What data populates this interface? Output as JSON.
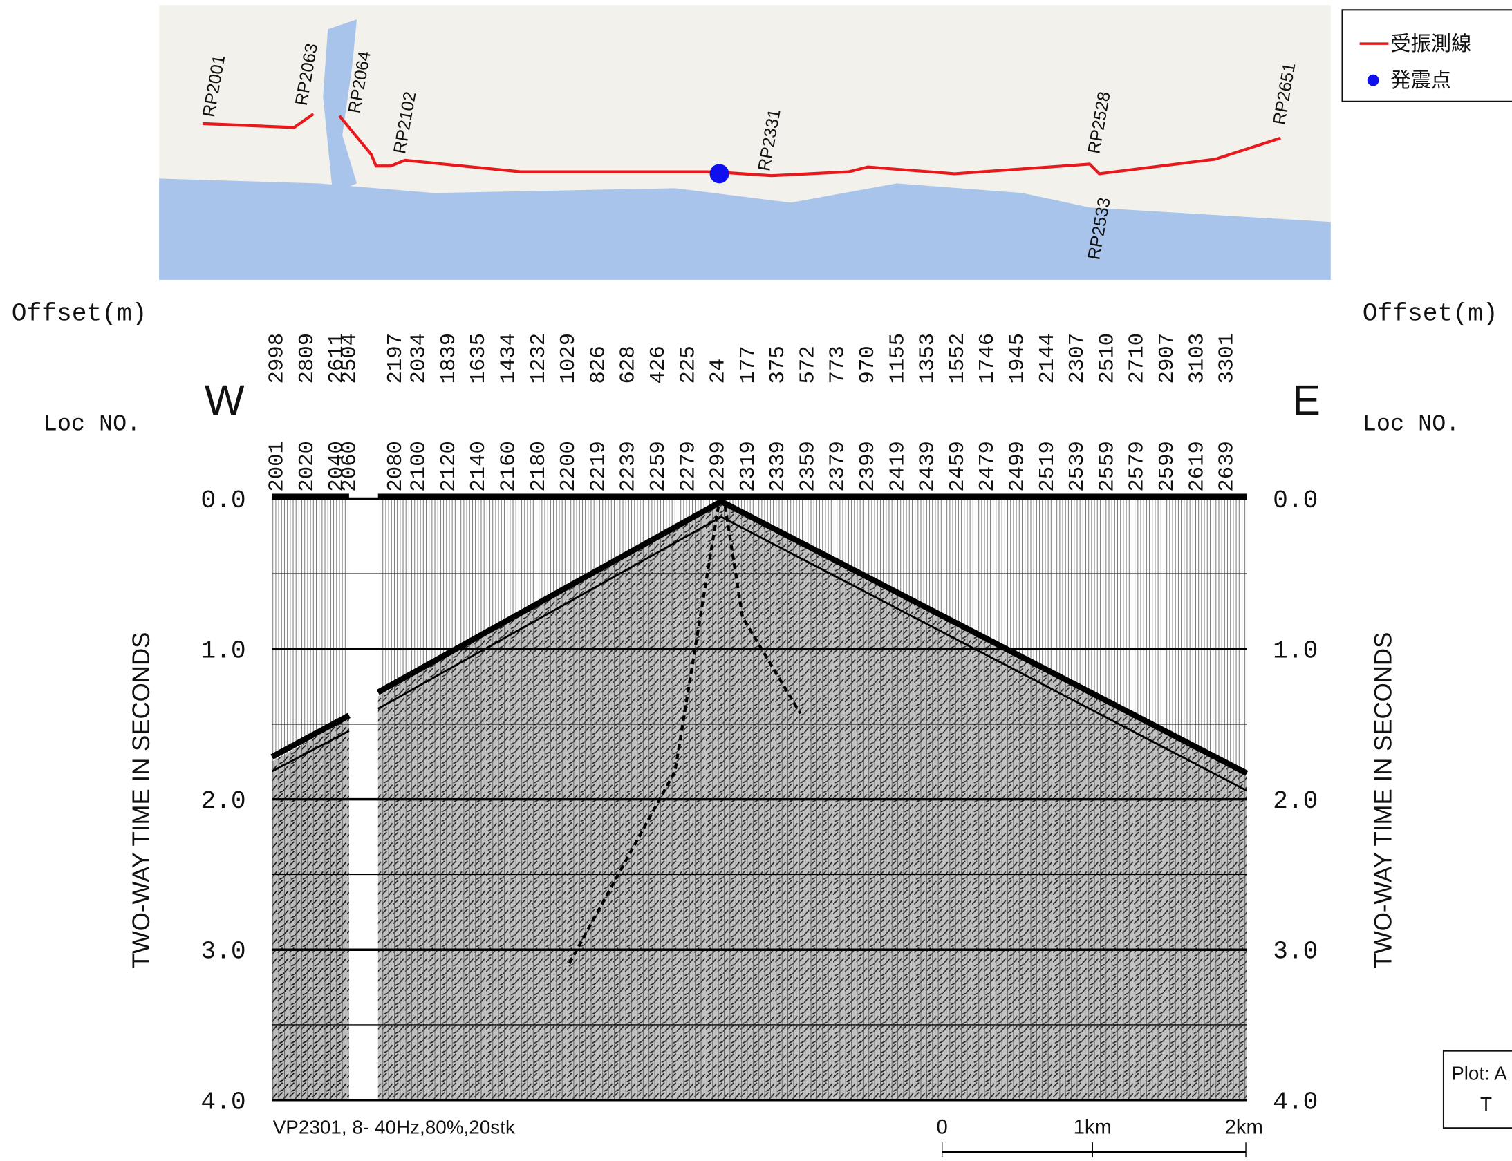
{
  "map": {
    "labels": [
      "RP2001",
      "RP2063",
      "RP2064",
      "RP2102",
      "RP2331",
      "RP2528",
      "RP2533",
      "RP2651"
    ],
    "legend": [
      "受振測線",
      "発震点"
    ]
  },
  "offset_label": "Offset(m)",
  "loc_label": "Loc NO.",
  "west": "W",
  "east": "E",
  "offsets": [
    2998,
    2809,
    2611,
    2504,
    2197,
    2034,
    1839,
    1635,
    1434,
    1232,
    1029,
    826,
    628,
    426,
    225,
    24,
    177,
    375,
    572,
    773,
    970,
    1155,
    1353,
    1552,
    1746,
    1945,
    2144,
    2307,
    2510,
    2710,
    2907,
    3103,
    3301
  ],
  "locations": [
    2001,
    2020,
    2040,
    2060,
    2080,
    2100,
    2120,
    2140,
    2160,
    2180,
    2200,
    2219,
    2239,
    2259,
    2279,
    2299,
    2319,
    2339,
    2359,
    2379,
    2399,
    2419,
    2439,
    2459,
    2479,
    2499,
    2519,
    2539,
    2559,
    2579,
    2599,
    2619,
    2639
  ],
  "time_ticks": [
    "0.0",
    "1.0",
    "2.0",
    "3.0",
    "4.0"
  ],
  "time_axis_title": "TWO-WAY TIME IN SECONDS",
  "caption": "VP2301, 8- 40Hz,80%,20stk",
  "scale_bar": [
    "0",
    "1km",
    "2km"
  ],
  "plot_note": [
    "Plot: A",
    "T"
  ]
}
